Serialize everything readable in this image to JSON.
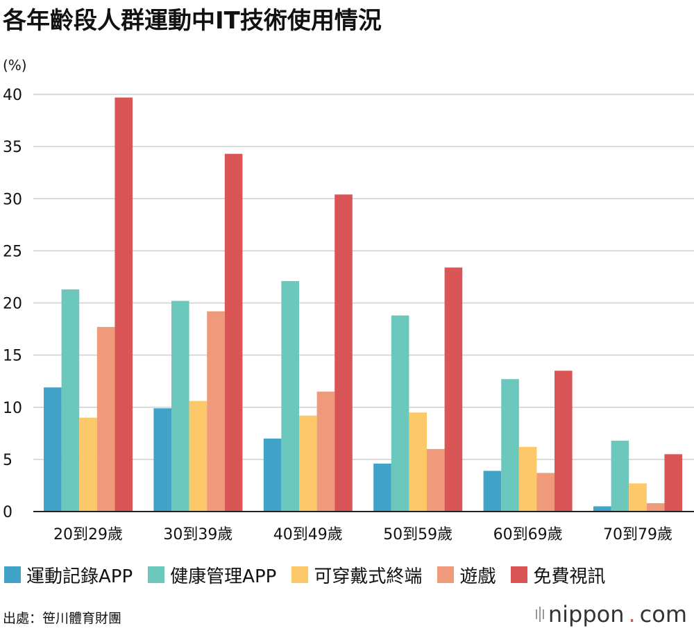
{
  "title": "各年齡段人群運動中IT技術使用情況",
  "unit": "(%)",
  "source": "出處：笹川體育財團",
  "logo": {
    "name": "nippon",
    "dot": ".",
    "suffix": "com"
  },
  "colors": {
    "運動記錄APP": "#42a3c8",
    "健康管理APP": "#6cc8bc",
    "可穿戴式終端": "#fcc86a",
    "遊戲": "#f09a7c",
    "免費視訊": "#da5555",
    "grid": "#cfcfcf",
    "axis": "#222222"
  },
  "chart_data": {
    "type": "bar",
    "title": "各年齡段人群運動中IT技術使用情況",
    "ylabel": "(%)",
    "ylim": [
      0,
      40
    ],
    "yticks": [
      0,
      5,
      10,
      15,
      20,
      25,
      30,
      35,
      40
    ],
    "grid": true,
    "legend": "bottom",
    "categories": [
      "20到29歲",
      "30到39歲",
      "40到49歲",
      "50到59歲",
      "60到69歲",
      "70到79歲"
    ],
    "series": [
      {
        "name": "運動記錄APP",
        "values": [
          11.9,
          9.9,
          7.0,
          4.6,
          3.9,
          0.5
        ]
      },
      {
        "name": "健康管理APP",
        "values": [
          21.3,
          20.2,
          22.1,
          18.8,
          12.7,
          6.8
        ]
      },
      {
        "name": "可穿戴式終端",
        "values": [
          9.0,
          10.6,
          9.2,
          9.5,
          6.2,
          2.7
        ]
      },
      {
        "name": "遊戲",
        "values": [
          17.7,
          19.2,
          11.5,
          6.0,
          3.7,
          0.8
        ]
      },
      {
        "name": "免費視訊",
        "values": [
          39.7,
          34.3,
          30.4,
          23.4,
          13.5,
          5.5
        ]
      }
    ]
  }
}
